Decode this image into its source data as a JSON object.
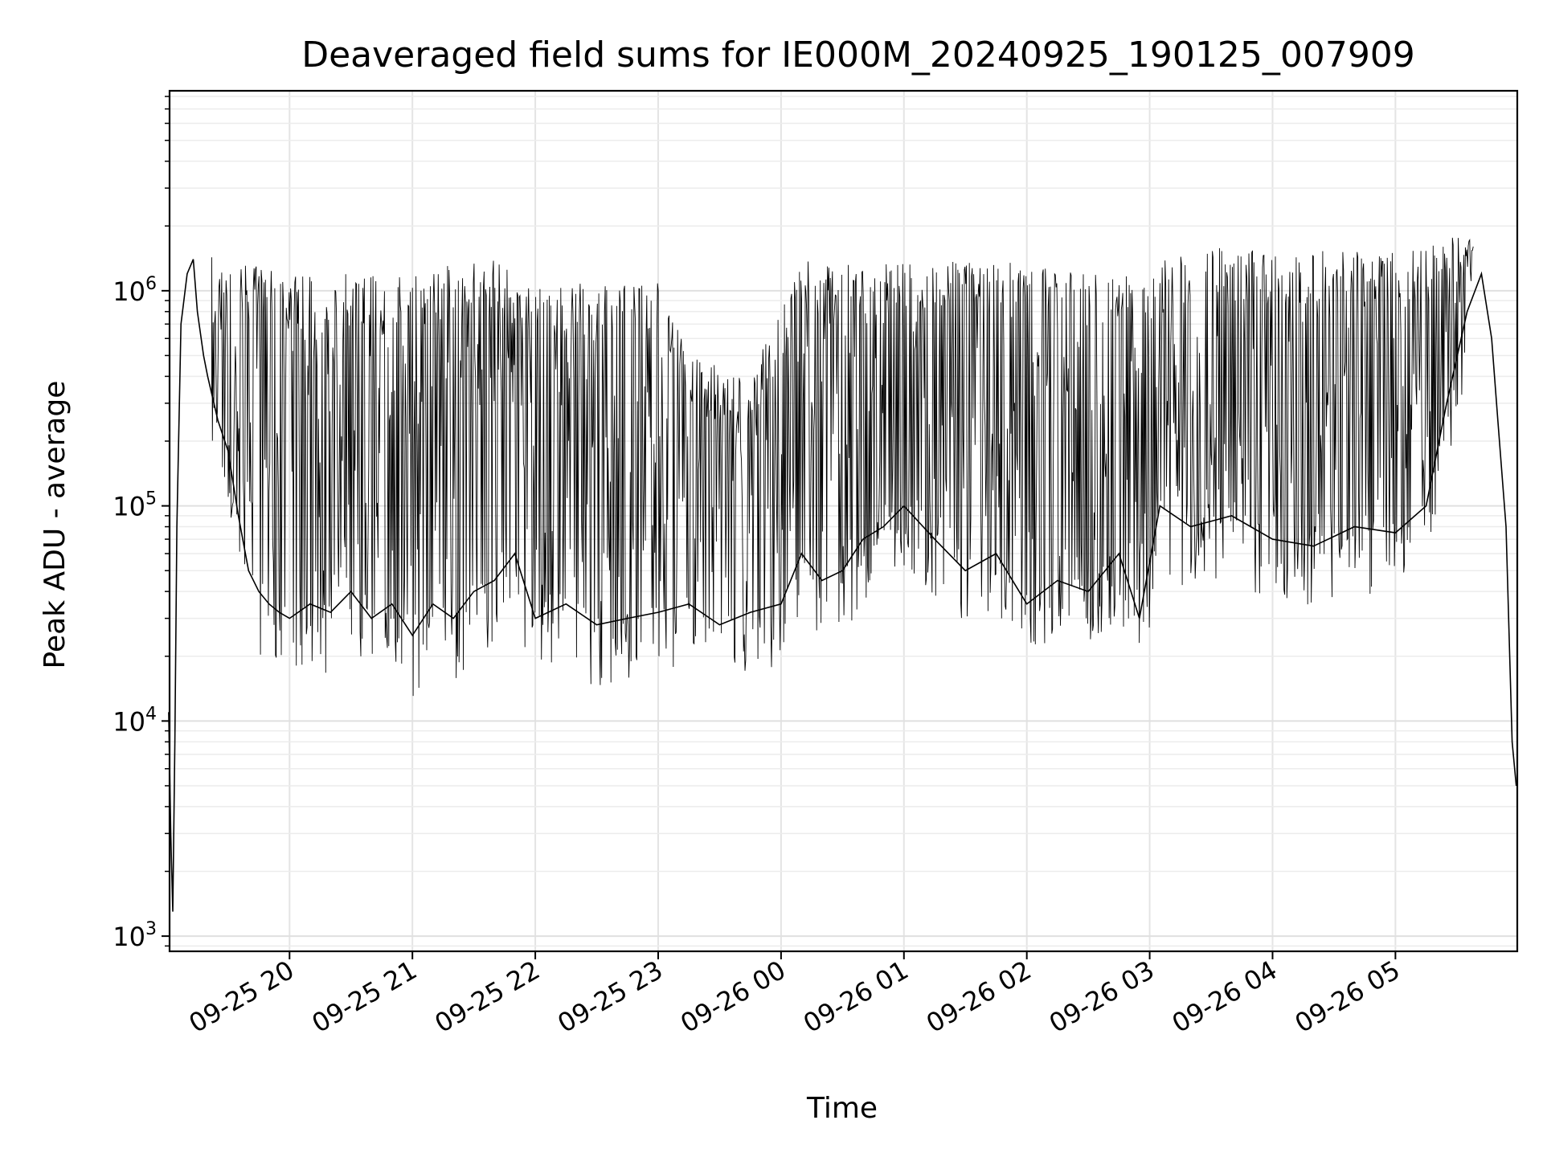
{
  "chart_data": {
    "type": "line",
    "title": "Deaveraged field sums for IE000M_20240925_190125_007909",
    "xlabel": "Time",
    "ylabel": "Peak ADU - average",
    "yscale": "log",
    "ylim": [
      850,
      8500000
    ],
    "xlim": [
      "09-25 19:01:25",
      "09-26 05:59:30"
    ],
    "x_ticks": [
      "09-25 20",
      "09-25 21",
      "09-25 22",
      "09-25 23",
      "09-26 00",
      "09-26 01",
      "09-26 02",
      "09-26 03",
      "09-26 04",
      "09-26 05"
    ],
    "y_ticks": [
      {
        "value": 1000,
        "base": "10",
        "exp": "3"
      },
      {
        "value": 10000,
        "base": "10",
        "exp": "4"
      },
      {
        "value": 100000,
        "base": "10",
        "exp": "5"
      },
      {
        "value": 1000000,
        "base": "10",
        "exp": "6"
      }
    ],
    "grid": true,
    "line_color": "#000000",
    "series": [
      {
        "x": [
          "09-25 19:01",
          "09-25 19:02",
          "09-25 19:03",
          "09-25 19:04",
          "09-25 19:05",
          "09-25 19:07",
          "09-25 19:10",
          "09-25 19:13",
          "09-25 19:15",
          "09-25 19:18",
          "09-25 19:20",
          "09-25 19:25",
          "09-25 19:30",
          "09-25 19:35",
          "09-25 19:40",
          "09-25 19:45",
          "09-25 19:50",
          "09-25 19:55",
          "09-25 20:00",
          "09-25 20:10",
          "09-25 20:20",
          "09-25 20:30",
          "09-25 20:40",
          "09-25 20:50",
          "09-25 21:00",
          "09-25 21:10",
          "09-25 21:20",
          "09-25 21:30",
          "09-25 21:40",
          "09-25 21:50",
          "09-25 22:00",
          "09-25 22:15",
          "09-25 22:30",
          "09-25 22:45",
          "09-25 23:00",
          "09-25 23:15",
          "09-25 23:30",
          "09-25 23:45",
          "09-26 00:00",
          "09-26 00:10",
          "09-26 00:20",
          "09-26 00:30",
          "09-26 00:40",
          "09-26 00:50",
          "09-26 01:00",
          "09-26 01:15",
          "09-26 01:30",
          "09-26 01:45",
          "09-26 02:00",
          "09-26 02:15",
          "09-26 02:30",
          "09-26 02:45",
          "09-26 02:55",
          "09-26 03:05",
          "09-26 03:20",
          "09-26 03:40",
          "09-26 04:00",
          "09-26 04:20",
          "09-26 04:40",
          "09-26 05:00",
          "09-26 05:15",
          "09-26 05:25",
          "09-26 05:35",
          "09-26 05:42",
          "09-26 05:47",
          "09-26 05:50",
          "09-26 05:54",
          "09-26 05:57",
          "09-26 05:59"
        ],
        "values": [
          11000,
          3000,
          1300,
          8000,
          80000,
          700000,
          1200000,
          1400000,
          800000,
          500000,
          400000,
          250000,
          180000,
          90000,
          50000,
          40000,
          35000,
          32000,
          30000,
          35000,
          32000,
          40000,
          30000,
          35000,
          25000,
          35000,
          30000,
          40000,
          45000,
          60000,
          30000,
          35000,
          28000,
          30000,
          32000,
          35000,
          28000,
          32000,
          35000,
          60000,
          45000,
          50000,
          70000,
          80000,
          100000,
          70000,
          50000,
          60000,
          35000,
          45000,
          40000,
          60000,
          30000,
          100000,
          80000,
          90000,
          70000,
          65000,
          80000,
          75000,
          100000,
          300000,
          800000,
          1200000,
          600000,
          250000,
          80000,
          8000,
          5000
        ]
      }
    ],
    "spike_envelope": {
      "x": [
        "09-25 19:20",
        "09-25 20:00",
        "09-25 21:00",
        "09-25 21:40",
        "09-25 22:00",
        "09-25 22:30",
        "09-25 23:00",
        "09-25 23:15",
        "09-25 23:45",
        "09-26 00:10",
        "09-26 00:30",
        "09-26 01:00",
        "09-26 01:30",
        "09-26 02:00",
        "09-26 02:30",
        "09-26 02:50",
        "09-26 03:10",
        "09-26 03:40",
        "09-26 04:00",
        "09-26 04:30",
        "09-26 05:00",
        "09-26 05:30"
      ],
      "values": [
        1500000,
        1200000,
        1250000,
        1400000,
        1100000,
        1100000,
        1100000,
        500000,
        400000,
        1400000,
        1350000,
        1400000,
        1500000,
        1300000,
        1250000,
        1200000,
        1500000,
        1600000,
        1550000,
        1550000,
        1500000,
        1800000
      ]
    }
  }
}
